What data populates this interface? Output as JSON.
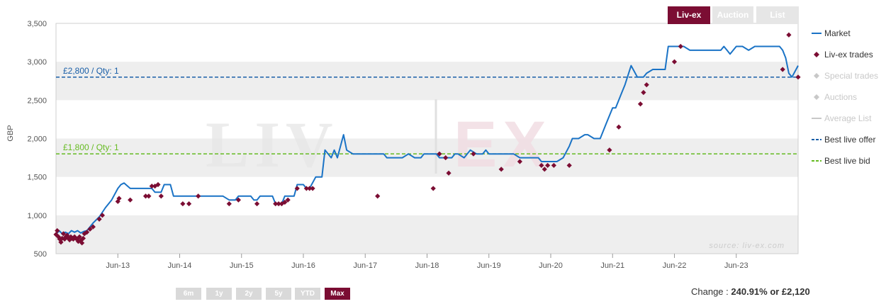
{
  "tabs": [
    {
      "label": "Liv-ex",
      "active": true
    },
    {
      "label": "Auction",
      "active": false
    },
    {
      "label": "List",
      "active": false
    }
  ],
  "range_buttons": [
    {
      "label": "6m",
      "active": false
    },
    {
      "label": "1y",
      "active": false
    },
    {
      "label": "2y",
      "active": false
    },
    {
      "label": "5y",
      "active": false
    },
    {
      "label": "YTD",
      "active": false
    },
    {
      "label": "Max",
      "active": true
    }
  ],
  "change": {
    "prefix": "Change :",
    "value": "240.91% or £2,120"
  },
  "watermark": {
    "brand_left": "LIV",
    "brand_right": "EX",
    "source": "source: liv-ex.com"
  },
  "colors": {
    "market": "#1a73c6",
    "trades": "#7b0d33",
    "offer": "#1a5fa8",
    "bid": "#66bb22",
    "band": "#eeeeee",
    "disabled": "#c8c8c8"
  },
  "legend": [
    {
      "label": "Market",
      "symbol": "line",
      "color": "#1a73c6",
      "enabled": true
    },
    {
      "label": "Liv-ex trades",
      "symbol": "diamond",
      "color": "#7b0d33",
      "enabled": true
    },
    {
      "label": "Special trades",
      "symbol": "diamond",
      "color": "#c8c8c8",
      "enabled": false
    },
    {
      "label": "Auctions",
      "symbol": "diamond",
      "color": "#c8c8c8",
      "enabled": false
    },
    {
      "label": "Average List",
      "symbol": "line",
      "color": "#c8c8c8",
      "enabled": false
    },
    {
      "label": "Best live offer",
      "symbol": "dash",
      "color": "#1a5fa8",
      "enabled": true
    },
    {
      "label": "Best live bid",
      "symbol": "dash",
      "color": "#66bb22",
      "enabled": true
    }
  ],
  "chart_data": {
    "type": "line",
    "ylabel": "GBP",
    "ylim": [
      500,
      3500
    ],
    "yticks": [
      500,
      1000,
      1500,
      2000,
      2500,
      3000,
      3500
    ],
    "ytick_labels": [
      "500",
      "1,000",
      "1,500",
      "2,000",
      "2,500",
      "3,000",
      "3,500"
    ],
    "xlim": [
      2012.0,
      2024.0
    ],
    "xticks": [
      {
        "x": 2013.0,
        "label": "Jun-13"
      },
      {
        "x": 2014.0,
        "label": "Jun-14"
      },
      {
        "x": 2015.0,
        "label": "Jun-15"
      },
      {
        "x": 2016.0,
        "label": "Jun-16"
      },
      {
        "x": 2017.0,
        "label": "Jun-17"
      },
      {
        "x": 2018.0,
        "label": "Jun-18"
      },
      {
        "x": 2019.0,
        "label": "Jun-19"
      },
      {
        "x": 2020.0,
        "label": "Jun-20"
      },
      {
        "x": 2021.0,
        "label": "Jun-21"
      },
      {
        "x": 2022.0,
        "label": "Jun-22"
      },
      {
        "x": 2023.0,
        "label": "Jun-23"
      }
    ],
    "grid": "alternating horizontal bands",
    "legend_position": "right",
    "reference_lines": [
      {
        "name": "Best live offer",
        "value": 2800,
        "label": "£2,800 / Qty: 1"
      },
      {
        "name": "Best live bid",
        "value": 1800,
        "label": "£1,800 / Qty: 1"
      }
    ],
    "series": [
      {
        "name": "Market",
        "kind": "line",
        "points": [
          [
            2012.0,
            750
          ],
          [
            2012.05,
            800
          ],
          [
            2012.1,
            760
          ],
          [
            2012.15,
            780
          ],
          [
            2012.2,
            760
          ],
          [
            2012.25,
            800
          ],
          [
            2012.3,
            780
          ],
          [
            2012.35,
            800
          ],
          [
            2012.4,
            770
          ],
          [
            2012.45,
            790
          ],
          [
            2012.5,
            800
          ],
          [
            2012.55,
            850
          ],
          [
            2012.6,
            900
          ],
          [
            2012.7,
            980
          ],
          [
            2012.8,
            1100
          ],
          [
            2012.9,
            1200
          ],
          [
            2013.0,
            1350
          ],
          [
            2013.05,
            1400
          ],
          [
            2013.1,
            1420
          ],
          [
            2013.2,
            1350
          ],
          [
            2013.3,
            1350
          ],
          [
            2013.4,
            1350
          ],
          [
            2013.5,
            1350
          ],
          [
            2013.55,
            1350
          ],
          [
            2013.6,
            1300
          ],
          [
            2013.7,
            1300
          ],
          [
            2013.75,
            1400
          ],
          [
            2013.85,
            1400
          ],
          [
            2013.9,
            1250
          ],
          [
            2014.0,
            1250
          ],
          [
            2014.1,
            1250
          ],
          [
            2014.2,
            1250
          ],
          [
            2014.3,
            1250
          ],
          [
            2014.4,
            1250
          ],
          [
            2014.5,
            1250
          ],
          [
            2014.6,
            1250
          ],
          [
            2014.7,
            1250
          ],
          [
            2014.8,
            1200
          ],
          [
            2014.9,
            1200
          ],
          [
            2014.95,
            1250
          ],
          [
            2015.05,
            1250
          ],
          [
            2015.15,
            1250
          ],
          [
            2015.2,
            1200
          ],
          [
            2015.25,
            1200
          ],
          [
            2015.3,
            1250
          ],
          [
            2015.4,
            1250
          ],
          [
            2015.5,
            1250
          ],
          [
            2015.55,
            1150
          ],
          [
            2015.65,
            1150
          ],
          [
            2015.7,
            1250
          ],
          [
            2015.8,
            1250
          ],
          [
            2015.85,
            1250
          ],
          [
            2015.9,
            1400
          ],
          [
            2016.0,
            1400
          ],
          [
            2016.05,
            1350
          ],
          [
            2016.1,
            1350
          ],
          [
            2016.2,
            1500
          ],
          [
            2016.3,
            1500
          ],
          [
            2016.35,
            1850
          ],
          [
            2016.45,
            1750
          ],
          [
            2016.5,
            1850
          ],
          [
            2016.55,
            1750
          ],
          [
            2016.65,
            2050
          ],
          [
            2016.7,
            1850
          ],
          [
            2016.8,
            1800
          ],
          [
            2016.9,
            1800
          ],
          [
            2017.0,
            1800
          ],
          [
            2017.1,
            1800
          ],
          [
            2017.2,
            1800
          ],
          [
            2017.3,
            1800
          ],
          [
            2017.35,
            1750
          ],
          [
            2017.45,
            1750
          ],
          [
            2017.55,
            1750
          ],
          [
            2017.6,
            1750
          ],
          [
            2017.7,
            1800
          ],
          [
            2017.8,
            1750
          ],
          [
            2017.9,
            1750
          ],
          [
            2017.95,
            1800
          ],
          [
            2018.05,
            1800
          ],
          [
            2018.15,
            1800
          ],
          [
            2018.2,
            1750
          ],
          [
            2018.3,
            1750
          ],
          [
            2018.4,
            1750
          ],
          [
            2018.45,
            1800
          ],
          [
            2018.5,
            1800
          ],
          [
            2018.6,
            1750
          ],
          [
            2018.7,
            1850
          ],
          [
            2018.8,
            1800
          ],
          [
            2018.9,
            1800
          ],
          [
            2018.95,
            1850
          ],
          [
            2019.0,
            1800
          ],
          [
            2019.1,
            1800
          ],
          [
            2019.2,
            1800
          ],
          [
            2019.3,
            1800
          ],
          [
            2019.4,
            1800
          ],
          [
            2019.5,
            1750
          ],
          [
            2019.6,
            1750
          ],
          [
            2019.7,
            1750
          ],
          [
            2019.8,
            1750
          ],
          [
            2019.85,
            1700
          ],
          [
            2019.95,
            1700
          ],
          [
            2020.0,
            1700
          ],
          [
            2020.1,
            1700
          ],
          [
            2020.2,
            1750
          ],
          [
            2020.3,
            1900
          ],
          [
            2020.35,
            2000
          ],
          [
            2020.45,
            2000
          ],
          [
            2020.55,
            2050
          ],
          [
            2020.6,
            2050
          ],
          [
            2020.7,
            2000
          ],
          [
            2020.8,
            2000
          ],
          [
            2020.9,
            2200
          ],
          [
            2021.0,
            2400
          ],
          [
            2021.05,
            2400
          ],
          [
            2021.15,
            2600
          ],
          [
            2021.2,
            2700
          ],
          [
            2021.3,
            2950
          ],
          [
            2021.4,
            2800
          ],
          [
            2021.5,
            2800
          ],
          [
            2021.55,
            2850
          ],
          [
            2021.65,
            2900
          ],
          [
            2021.75,
            2900
          ],
          [
            2021.85,
            2900
          ],
          [
            2021.9,
            3200
          ],
          [
            2022.0,
            3200
          ],
          [
            2022.05,
            3200
          ],
          [
            2022.15,
            3200
          ],
          [
            2022.25,
            3150
          ],
          [
            2022.35,
            3150
          ],
          [
            2022.45,
            3150
          ],
          [
            2022.55,
            3150
          ],
          [
            2022.65,
            3150
          ],
          [
            2022.75,
            3150
          ],
          [
            2022.8,
            3200
          ],
          [
            2022.85,
            3150
          ],
          [
            2022.9,
            3100
          ],
          [
            2023.0,
            3200
          ],
          [
            2023.1,
            3200
          ],
          [
            2023.2,
            3150
          ],
          [
            2023.3,
            3200
          ],
          [
            2023.4,
            3200
          ],
          [
            2023.5,
            3200
          ],
          [
            2023.6,
            3200
          ],
          [
            2023.7,
            3200
          ],
          [
            2023.75,
            3150
          ],
          [
            2023.8,
            3050
          ],
          [
            2023.85,
            2850
          ],
          [
            2023.9,
            2800
          ],
          [
            2024.0,
            2950
          ]
        ]
      },
      {
        "name": "Liv-ex trades",
        "kind": "scatter",
        "points": [
          [
            2012.0,
            750
          ],
          [
            2012.02,
            800
          ],
          [
            2012.04,
            720
          ],
          [
            2012.06,
            690
          ],
          [
            2012.08,
            650
          ],
          [
            2012.1,
            700
          ],
          [
            2012.12,
            760
          ],
          [
            2012.14,
            690
          ],
          [
            2012.16,
            720
          ],
          [
            2012.18,
            740
          ],
          [
            2012.2,
            700
          ],
          [
            2012.22,
            680
          ],
          [
            2012.24,
            720
          ],
          [
            2012.26,
            700
          ],
          [
            2012.28,
            690
          ],
          [
            2012.3,
            720
          ],
          [
            2012.32,
            700
          ],
          [
            2012.34,
            690
          ],
          [
            2012.36,
            660
          ],
          [
            2012.38,
            720
          ],
          [
            2012.4,
            670
          ],
          [
            2012.42,
            640
          ],
          [
            2012.44,
            700
          ],
          [
            2012.46,
            760
          ],
          [
            2012.5,
            780
          ],
          [
            2012.55,
            820
          ],
          [
            2012.6,
            850
          ],
          [
            2012.7,
            950
          ],
          [
            2012.75,
            1000
          ],
          [
            2013.0,
            1180
          ],
          [
            2013.02,
            1220
          ],
          [
            2013.2,
            1200
          ],
          [
            2013.45,
            1250
          ],
          [
            2013.5,
            1250
          ],
          [
            2013.55,
            1380
          ],
          [
            2013.6,
            1380
          ],
          [
            2013.65,
            1400
          ],
          [
            2013.7,
            1250
          ],
          [
            2014.05,
            1150
          ],
          [
            2014.15,
            1150
          ],
          [
            2014.3,
            1250
          ],
          [
            2014.8,
            1150
          ],
          [
            2014.95,
            1200
          ],
          [
            2015.25,
            1150
          ],
          [
            2015.55,
            1150
          ],
          [
            2015.6,
            1150
          ],
          [
            2015.65,
            1150
          ],
          [
            2015.7,
            1170
          ],
          [
            2015.75,
            1200
          ],
          [
            2015.9,
            1350
          ],
          [
            2016.05,
            1350
          ],
          [
            2016.1,
            1350
          ],
          [
            2016.15,
            1350
          ],
          [
            2017.2,
            1250
          ],
          [
            2018.1,
            1350
          ],
          [
            2018.2,
            1800
          ],
          [
            2018.3,
            1750
          ],
          [
            2018.35,
            1550
          ],
          [
            2018.75,
            1800
          ],
          [
            2019.2,
            1600
          ],
          [
            2019.5,
            1700
          ],
          [
            2019.85,
            1650
          ],
          [
            2019.9,
            1600
          ],
          [
            2019.95,
            1650
          ],
          [
            2020.05,
            1650
          ],
          [
            2020.3,
            1650
          ],
          [
            2020.95,
            1850
          ],
          [
            2021.1,
            2150
          ],
          [
            2021.45,
            2450
          ],
          [
            2021.5,
            2600
          ],
          [
            2021.55,
            2700
          ],
          [
            2022.0,
            3000
          ],
          [
            2022.1,
            3200
          ],
          [
            2023.75,
            2900
          ],
          [
            2023.85,
            3350
          ],
          [
            2024.0,
            2800
          ]
        ]
      }
    ]
  }
}
